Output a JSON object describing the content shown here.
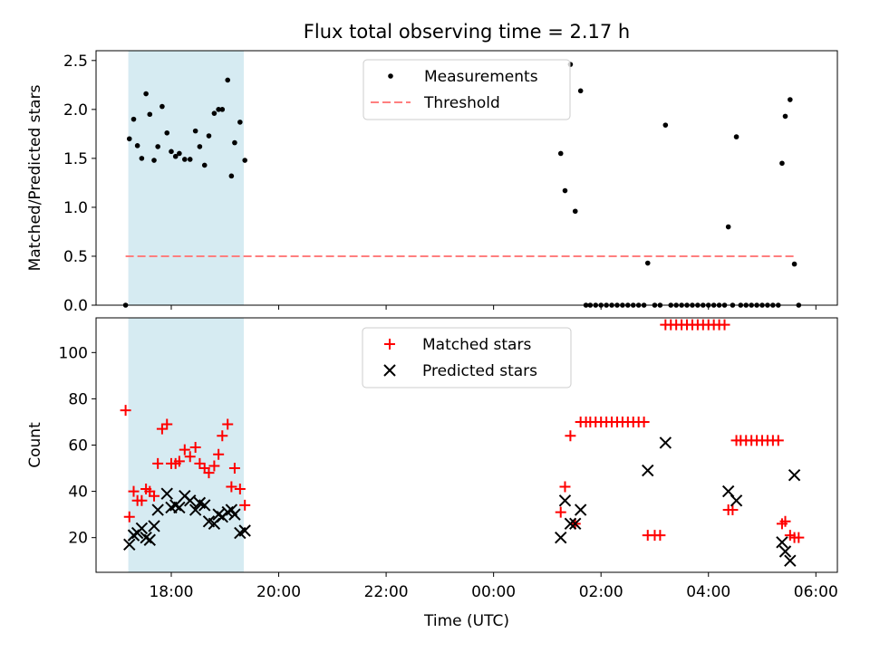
{
  "chart_data": [
    {
      "type": "scatter",
      "title": "Flux total observing time = 2.17 h",
      "xlabel": "",
      "ylabel": "Matched/Predicted stars",
      "xlim": [
        16.6,
        30.4
      ],
      "ylim": [
        0,
        2.6
      ],
      "yticks": [
        "0.0",
        "0.5",
        "1.0",
        "1.5",
        "2.0",
        "2.5"
      ],
      "ytick_values": [
        0,
        0.5,
        1.0,
        1.5,
        2.0,
        2.5
      ],
      "shaded_region": {
        "x_start": 17.2,
        "x_end": 19.35,
        "color": "#add8e6"
      },
      "legend": {
        "position": "top-center",
        "entries": [
          "Measurements",
          "Threshold"
        ]
      },
      "threshold": {
        "name": "Threshold",
        "value": 0.5,
        "x_start": 17.15,
        "x_end": 29.65,
        "color": "#ff7f7f",
        "style": "dashed"
      },
      "series": [
        {
          "name": "Measurements",
          "color": "#000000",
          "marker": "dot",
          "points": [
            [
              17.15,
              0.0
            ],
            [
              17.22,
              1.7
            ],
            [
              17.3,
              1.9
            ],
            [
              17.37,
              1.63
            ],
            [
              17.45,
              1.5
            ],
            [
              17.53,
              2.16
            ],
            [
              17.6,
              1.95
            ],
            [
              17.68,
              1.48
            ],
            [
              17.75,
              1.62
            ],
            [
              17.83,
              2.03
            ],
            [
              17.92,
              1.76
            ],
            [
              18.0,
              1.57
            ],
            [
              18.08,
              1.52
            ],
            [
              18.15,
              1.55
            ],
            [
              18.25,
              1.49
            ],
            [
              18.35,
              1.49
            ],
            [
              18.45,
              1.78
            ],
            [
              18.53,
              1.62
            ],
            [
              18.62,
              1.43
            ],
            [
              18.7,
              1.73
            ],
            [
              18.8,
              1.96
            ],
            [
              18.88,
              2.0
            ],
            [
              18.95,
              2.0
            ],
            [
              19.05,
              2.3
            ],
            [
              19.12,
              1.32
            ],
            [
              19.18,
              1.66
            ],
            [
              19.28,
              1.87
            ],
            [
              19.37,
              1.48
            ],
            [
              25.25,
              1.55
            ],
            [
              25.33,
              1.17
            ],
            [
              25.43,
              2.46
            ],
            [
              25.52,
              0.96
            ],
            [
              25.62,
              2.19
            ],
            [
              25.72,
              0.0
            ],
            [
              25.8,
              0.0
            ],
            [
              25.9,
              0.0
            ],
            [
              26.0,
              0.0
            ],
            [
              26.1,
              0.0
            ],
            [
              26.2,
              0.0
            ],
            [
              26.3,
              0.0
            ],
            [
              26.4,
              0.0
            ],
            [
              26.5,
              0.0
            ],
            [
              26.6,
              0.0
            ],
            [
              26.7,
              0.0
            ],
            [
              26.8,
              0.0
            ],
            [
              26.87,
              0.43
            ],
            [
              27.0,
              0.0
            ],
            [
              27.1,
              0.0
            ],
            [
              27.2,
              1.84
            ],
            [
              27.3,
              0.0
            ],
            [
              27.4,
              0.0
            ],
            [
              27.5,
              0.0
            ],
            [
              27.6,
              0.0
            ],
            [
              27.7,
              0.0
            ],
            [
              27.8,
              0.0
            ],
            [
              27.9,
              0.0
            ],
            [
              28.0,
              0.0
            ],
            [
              28.1,
              0.0
            ],
            [
              28.2,
              0.0
            ],
            [
              28.3,
              0.0
            ],
            [
              28.37,
              0.8
            ],
            [
              28.45,
              0.0
            ],
            [
              28.52,
              1.72
            ],
            [
              28.6,
              0.0
            ],
            [
              28.7,
              0.0
            ],
            [
              28.8,
              0.0
            ],
            [
              28.9,
              0.0
            ],
            [
              29.0,
              0.0
            ],
            [
              29.1,
              0.0
            ],
            [
              29.2,
              0.0
            ],
            [
              29.3,
              0.0
            ],
            [
              29.37,
              1.45
            ],
            [
              29.43,
              1.93
            ],
            [
              29.52,
              2.1
            ],
            [
              29.6,
              0.42
            ],
            [
              29.68,
              0.0
            ]
          ]
        }
      ]
    },
    {
      "type": "scatter",
      "title": "",
      "xlabel": "Time (UTC)",
      "ylabel": "Count",
      "xlim": [
        16.6,
        30.4
      ],
      "ylim": [
        5,
        115
      ],
      "yticks": [
        "20",
        "40",
        "60",
        "80",
        "100"
      ],
      "ytick_values": [
        20,
        40,
        60,
        80,
        100
      ],
      "xticks": [
        "18:00",
        "20:00",
        "22:00",
        "00:00",
        "02:00",
        "04:00",
        "06:00"
      ],
      "xtick_values": [
        18,
        20,
        22,
        24,
        26,
        28,
        30
      ],
      "shaded_region": {
        "x_start": 17.2,
        "x_end": 19.35,
        "color": "#add8e6"
      },
      "legend": {
        "position": "top-center",
        "entries": [
          "Matched stars",
          "Predicted stars"
        ]
      },
      "series": [
        {
          "name": "Matched stars",
          "color": "#ff0000",
          "marker": "plus",
          "points": [
            [
              17.15,
              75
            ],
            [
              17.22,
              29
            ],
            [
              17.3,
              40
            ],
            [
              17.37,
              36
            ],
            [
              17.45,
              36
            ],
            [
              17.53,
              41
            ],
            [
              17.6,
              40
            ],
            [
              17.68,
              38
            ],
            [
              17.75,
              52
            ],
            [
              17.83,
              67
            ],
            [
              17.92,
              69
            ],
            [
              18.0,
              52
            ],
            [
              18.08,
              52
            ],
            [
              18.15,
              53
            ],
            [
              18.25,
              58
            ],
            [
              18.35,
              55
            ],
            [
              18.45,
              59
            ],
            [
              18.53,
              52
            ],
            [
              18.62,
              50
            ],
            [
              18.7,
              48
            ],
            [
              18.8,
              51
            ],
            [
              18.88,
              56
            ],
            [
              18.95,
              64
            ],
            [
              19.05,
              69
            ],
            [
              19.12,
              42
            ],
            [
              19.18,
              50
            ],
            [
              19.28,
              41
            ],
            [
              19.37,
              34
            ],
            [
              25.25,
              31
            ],
            [
              25.33,
              42
            ],
            [
              25.43,
              64
            ],
            [
              25.52,
              26
            ],
            [
              25.62,
              70
            ],
            [
              25.72,
              70
            ],
            [
              25.8,
              70
            ],
            [
              25.9,
              70
            ],
            [
              26.0,
              70
            ],
            [
              26.1,
              70
            ],
            [
              26.2,
              70
            ],
            [
              26.3,
              70
            ],
            [
              26.4,
              70
            ],
            [
              26.5,
              70
            ],
            [
              26.6,
              70
            ],
            [
              26.7,
              70
            ],
            [
              26.8,
              70
            ],
            [
              26.87,
              21
            ],
            [
              27.0,
              21
            ],
            [
              27.1,
              21
            ],
            [
              27.2,
              112
            ],
            [
              27.3,
              112
            ],
            [
              27.4,
              112
            ],
            [
              27.5,
              112
            ],
            [
              27.6,
              112
            ],
            [
              27.7,
              112
            ],
            [
              27.8,
              112
            ],
            [
              27.9,
              112
            ],
            [
              28.0,
              112
            ],
            [
              28.1,
              112
            ],
            [
              28.2,
              112
            ],
            [
              28.3,
              112
            ],
            [
              28.37,
              32
            ],
            [
              28.45,
              32
            ],
            [
              28.52,
              62
            ],
            [
              28.6,
              62
            ],
            [
              28.7,
              62
            ],
            [
              28.8,
              62
            ],
            [
              28.9,
              62
            ],
            [
              29.0,
              62
            ],
            [
              29.1,
              62
            ],
            [
              29.2,
              62
            ],
            [
              29.3,
              62
            ],
            [
              29.37,
              26
            ],
            [
              29.43,
              27
            ],
            [
              29.52,
              21
            ],
            [
              29.6,
              20
            ],
            [
              29.68,
              20
            ]
          ]
        },
        {
          "name": "Predicted stars",
          "color": "#000000",
          "marker": "x",
          "points": [
            [
              17.22,
              17
            ],
            [
              17.3,
              21
            ],
            [
              17.37,
              22
            ],
            [
              17.45,
              24
            ],
            [
              17.53,
              20
            ],
            [
              17.6,
              19
            ],
            [
              17.68,
              25
            ],
            [
              17.75,
              32
            ],
            [
              17.92,
              39
            ],
            [
              18.0,
              33
            ],
            [
              18.08,
              34
            ],
            [
              18.15,
              33
            ],
            [
              18.25,
              38
            ],
            [
              18.35,
              36
            ],
            [
              18.45,
              32
            ],
            [
              18.53,
              35
            ],
            [
              18.62,
              34
            ],
            [
              18.7,
              27
            ],
            [
              18.8,
              26
            ],
            [
              18.88,
              30
            ],
            [
              18.95,
              29
            ],
            [
              19.05,
              31
            ],
            [
              19.12,
              32
            ],
            [
              19.18,
              30
            ],
            [
              19.28,
              22
            ],
            [
              19.37,
              23
            ],
            [
              25.25,
              20
            ],
            [
              25.33,
              36
            ],
            [
              25.43,
              26
            ],
            [
              25.52,
              26
            ],
            [
              25.62,
              32
            ],
            [
              26.87,
              49
            ],
            [
              27.2,
              61
            ],
            [
              28.37,
              40
            ],
            [
              28.52,
              36
            ],
            [
              29.37,
              18
            ],
            [
              29.43,
              14
            ],
            [
              29.52,
              10
            ],
            [
              29.6,
              47
            ]
          ]
        }
      ]
    }
  ]
}
